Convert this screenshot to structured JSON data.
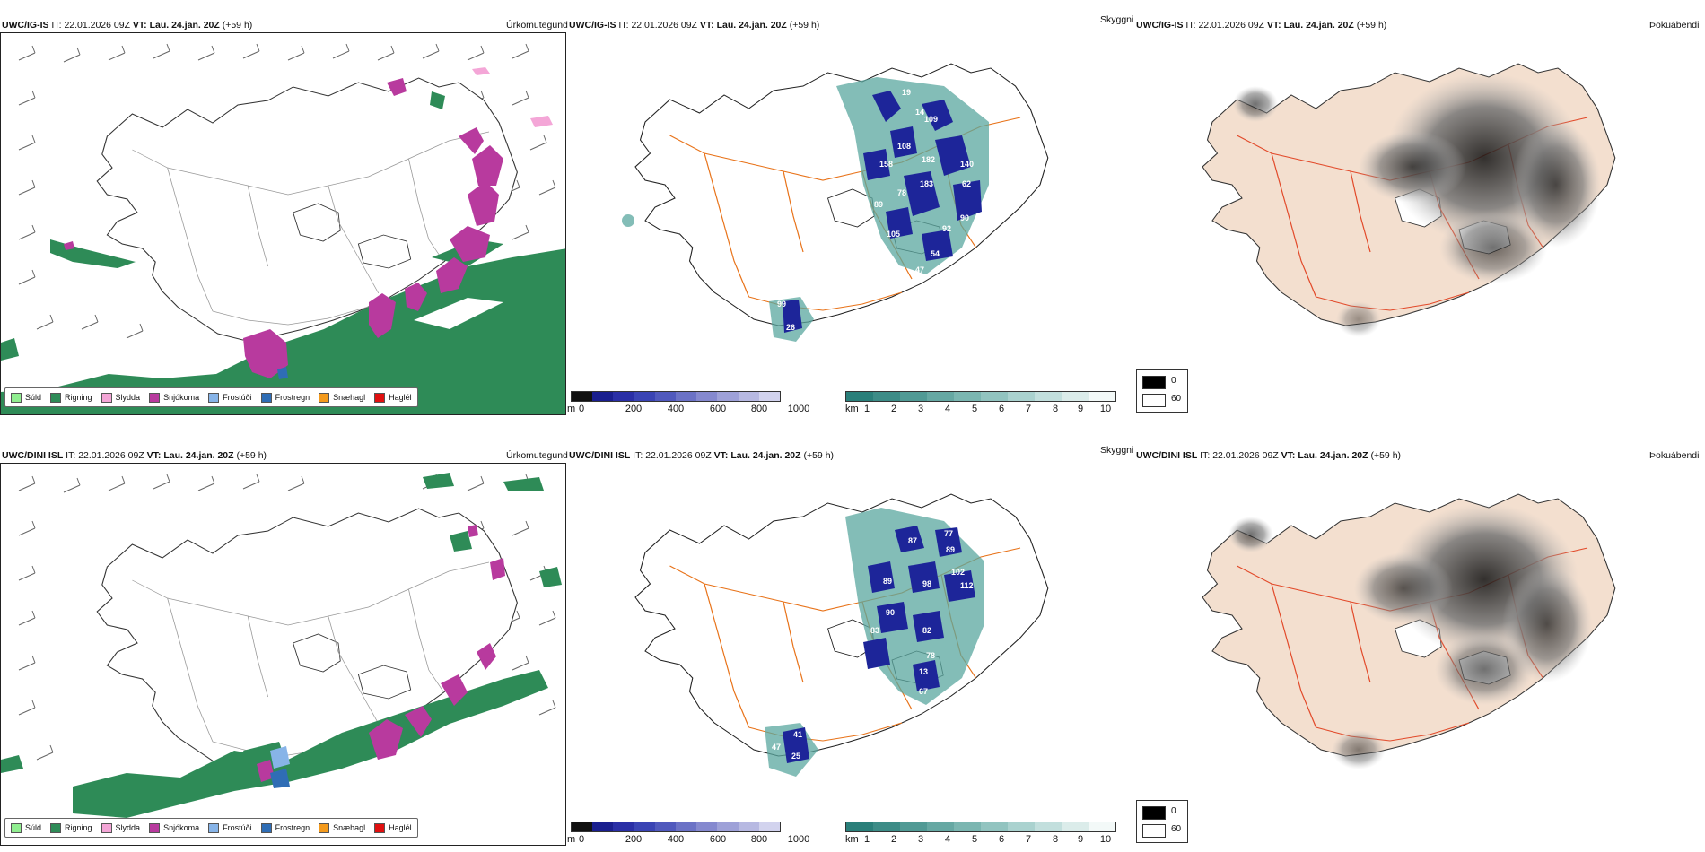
{
  "rows": [
    {
      "model": "UWC/IG-IS",
      "it_label": "IT:",
      "it_value": "22.01.2026 09Z",
      "vt_label": "VT:",
      "vt_value": "Lau. 24.jan. 20Z",
      "lead": "(+59 h)",
      "precip_type_label": "Úrkomutegund",
      "cloud_label": "Skyggni",
      "fog_label": "Þokuábendi",
      "ceiling_values": [
        "109",
        "19",
        "14",
        "140",
        "158",
        "108",
        "182",
        "62",
        "183",
        "78",
        "89",
        "105",
        "92",
        "90",
        "54",
        "47",
        "99",
        "26"
      ]
    },
    {
      "model": "UWC/DINI ISL",
      "it_label": "IT:",
      "it_value": "22.01.2026 09Z",
      "vt_label": "VT:",
      "vt_value": "Lau. 24.jan. 20Z",
      "lead": "(+59 h)",
      "precip_type_label": "Úrkomutegund",
      "cloud_label": "Skyggni",
      "fog_label": "Þokuábendi",
      "ceiling_values": [
        "87",
        "77",
        "89",
        "102",
        "112",
        "89",
        "98",
        "90",
        "83",
        "82",
        "78",
        "13",
        "67",
        "41",
        "47",
        "25"
      ]
    }
  ],
  "precip_legend": [
    {
      "label": "Súld",
      "color": "#90ee90"
    },
    {
      "label": "Rigning",
      "color": "#2e8b57"
    },
    {
      "label": "Slydda",
      "color": "#f4a6d7"
    },
    {
      "label": "Snjókoma",
      "color": "#b83a9e"
    },
    {
      "label": "Frostúði",
      "color": "#87b4e8"
    },
    {
      "label": "Frostregn",
      "color": "#2f6db5"
    },
    {
      "label": "Snæhagl",
      "color": "#f39a1d"
    },
    {
      "label": "Haglél",
      "color": "#e01010"
    }
  ],
  "ceiling_bar": {
    "unit": "m",
    "ticks": [
      "0",
      "200",
      "400",
      "600",
      "800",
      "1000"
    ],
    "colors": [
      "#111111",
      "#1a1f8f",
      "#2a2fa6",
      "#3a44b4",
      "#5059bd",
      "#6b72c6",
      "#8589cf",
      "#9ea1d8",
      "#b7b9e2",
      "#d2d3ee"
    ]
  },
  "visibility_bar": {
    "unit": "km",
    "ticks": [
      "1",
      "2",
      "3",
      "4",
      "5",
      "6",
      "7",
      "8",
      "9",
      "10"
    ],
    "colors": [
      "#2a7f7a",
      "#3d8c87",
      "#519a95",
      "#66a8a3",
      "#7bb6b1",
      "#92c4c0",
      "#aad2cf",
      "#c2dfdd",
      "#dbecea",
      "#f3f9f8"
    ]
  },
  "fog_legend": {
    "values": [
      "0",
      "60"
    ]
  },
  "colors": {
    "rain": "#2e8b57",
    "snow": "#b83a9e",
    "roads": "#e8731a",
    "fog_land": "#f3dfcf",
    "ceiling_dark": "#1d2599",
    "vis_teal": "#5aa79f"
  }
}
